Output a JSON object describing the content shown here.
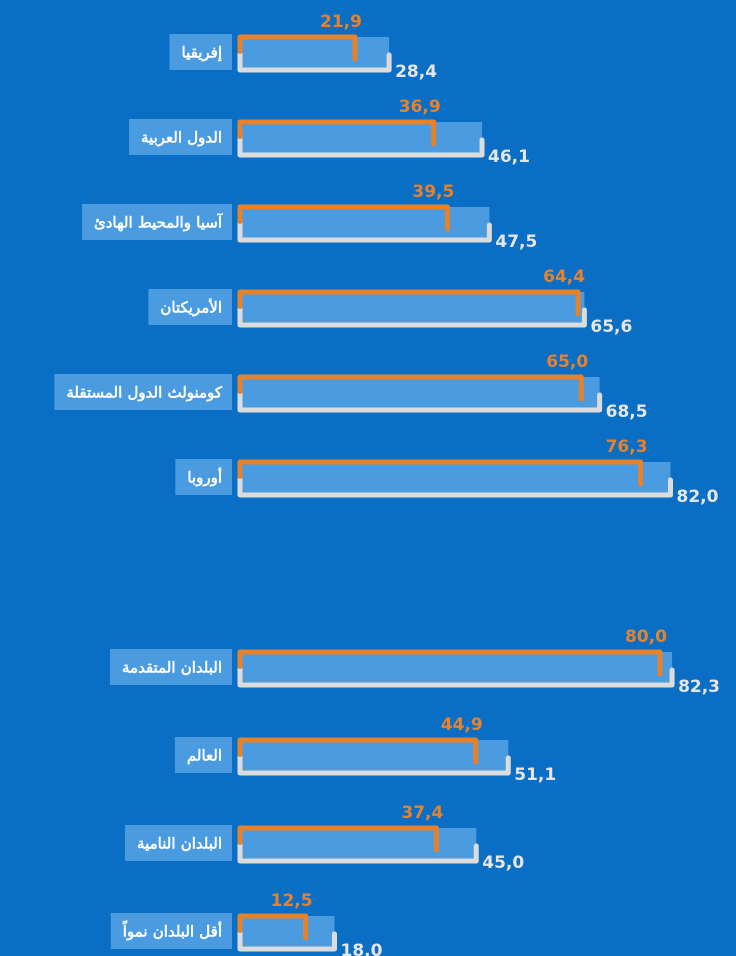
{
  "chart_data": [
    {
      "type": "bar",
      "categories": [
        "إفريقيا",
        "الدول العربية",
        "آسيا والمحيط الهادئ",
        "الأمريكتان",
        "كومنولث الدول المستقلة",
        "أوروبا"
      ],
      "series": [
        {
          "color": "#e8822a",
          "values": [
            21.9,
            36.9,
            39.5,
            64.4,
            65.0,
            76.3
          ],
          "value_labels": [
            "21,9",
            "36,9",
            "39,5",
            "64,4",
            "65,0",
            "76,3"
          ]
        },
        {
          "color": "#dcdcdc",
          "values": [
            28.4,
            46.1,
            47.5,
            65.6,
            68.5,
            82.0
          ],
          "value_labels": [
            "28,4",
            "46,1",
            "47,5",
            "65,6",
            "68,5",
            "82,0"
          ]
        }
      ]
    },
    {
      "type": "bar",
      "categories": [
        "البلدان المتقدمة",
        "العالم",
        "البلدان النامية",
        "أقل البلدان نمواً"
      ],
      "series": [
        {
          "color": "#e8822a",
          "values": [
            80.0,
            44.9,
            37.4,
            12.5
          ],
          "value_labels": [
            "80,0",
            "44,9",
            "37,4",
            "12,5"
          ]
        },
        {
          "color": "#dcdcdc",
          "values": [
            82.3,
            51.1,
            45.0,
            18.0
          ],
          "value_labels": [
            "82,3",
            "51,1",
            "45,0",
            "18,0"
          ]
        }
      ]
    }
  ]
}
